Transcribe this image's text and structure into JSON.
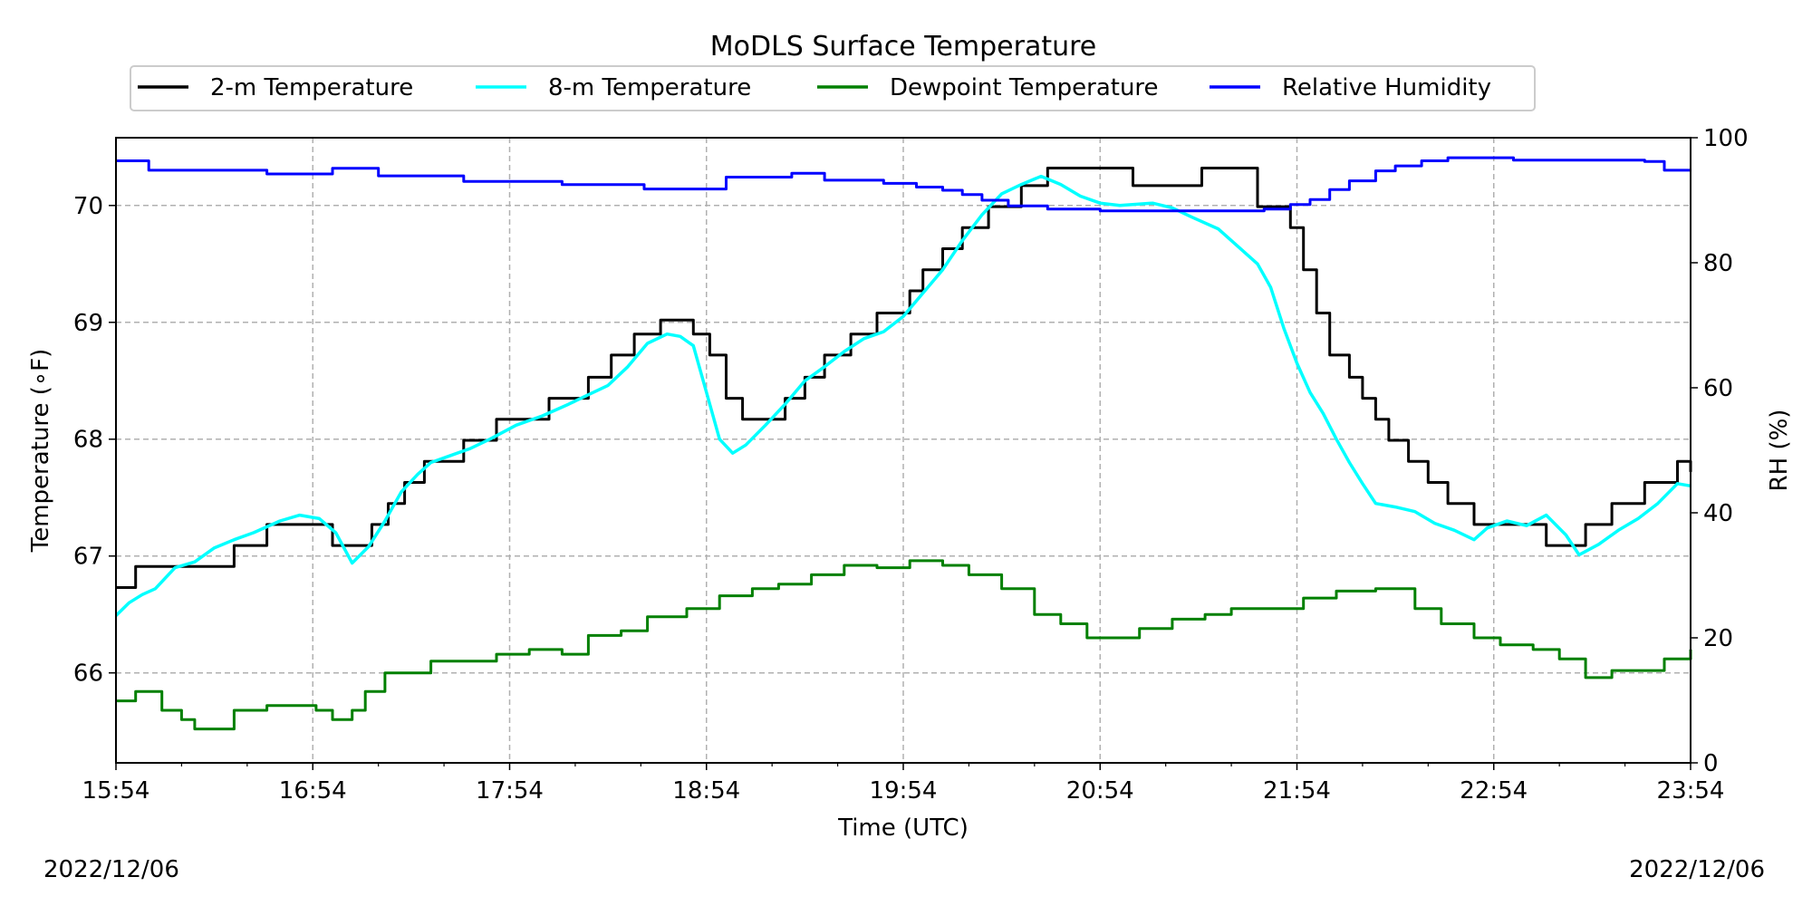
{
  "chart_data": {
    "type": "line",
    "title": "MoDLS Surface Temperature",
    "xlabel": "Time (UTC)",
    "ylabel_left": "Temperature (∘F)",
    "ylabel_right": "RH (%)",
    "x_ticks": [
      "15:54",
      "16:54",
      "17:54",
      "18:54",
      "19:54",
      "20:54",
      "21:54",
      "22:54",
      "23:54"
    ],
    "xlim": [
      "15:54",
      "23:54"
    ],
    "ylim_left": [
      65.23,
      70.58
    ],
    "ylim_right": [
      0,
      100
    ],
    "y_ticks_left": [
      "66",
      "67",
      "68",
      "69",
      "70"
    ],
    "y_ticks_right": [
      "0",
      "20",
      "40",
      "60",
      "80",
      "100"
    ],
    "grid": true,
    "legend_position": "top",
    "date_left": "2022/12/06",
    "date_right": "2022/12/06",
    "series": [
      {
        "name": "2-m Temperature",
        "axis": "left",
        "color": "#000000",
        "points": [
          [
            "15:54",
            66.73
          ],
          [
            "16:00",
            66.91
          ],
          [
            "16:25",
            66.91
          ],
          [
            "16:30",
            67.09
          ],
          [
            "16:40",
            67.27
          ],
          [
            "16:55",
            67.27
          ],
          [
            "17:00",
            67.09
          ],
          [
            "17:07",
            67.09
          ],
          [
            "17:12",
            67.27
          ],
          [
            "17:17",
            67.45
          ],
          [
            "17:22",
            67.63
          ],
          [
            "17:28",
            67.81
          ],
          [
            "17:40",
            67.99
          ],
          [
            "17:50",
            68.17
          ],
          [
            "18:00",
            68.17
          ],
          [
            "18:06",
            68.35
          ],
          [
            "18:18",
            68.53
          ],
          [
            "18:25",
            68.72
          ],
          [
            "18:32",
            68.9
          ],
          [
            "18:40",
            69.02
          ],
          [
            "18:50",
            68.9
          ],
          [
            "18:55",
            68.72
          ],
          [
            "19:00",
            68.35
          ],
          [
            "19:05",
            68.17
          ],
          [
            "19:12",
            68.17
          ],
          [
            "19:18",
            68.35
          ],
          [
            "19:24",
            68.53
          ],
          [
            "19:30",
            68.72
          ],
          [
            "19:38",
            68.9
          ],
          [
            "19:46",
            69.08
          ],
          [
            "19:56",
            69.27
          ],
          [
            "20:00",
            69.45
          ],
          [
            "20:06",
            69.63
          ],
          [
            "20:12",
            69.81
          ],
          [
            "20:20",
            69.99
          ],
          [
            "20:30",
            70.17
          ],
          [
            "20:38",
            70.32
          ],
          [
            "21:00",
            70.32
          ],
          [
            "21:04",
            70.17
          ],
          [
            "21:20",
            70.17
          ],
          [
            "21:25",
            70.32
          ],
          [
            "21:38",
            70.32
          ],
          [
            "21:42",
            69.99
          ],
          [
            "21:48",
            69.99
          ],
          [
            "21:52",
            69.81
          ],
          [
            "21:56",
            69.45
          ],
          [
            "22:00",
            69.08
          ],
          [
            "22:04",
            68.72
          ],
          [
            "22:10",
            68.53
          ],
          [
            "22:14",
            68.35
          ],
          [
            "22:18",
            68.17
          ],
          [
            "22:22",
            67.99
          ],
          [
            "22:28",
            67.81
          ],
          [
            "22:34",
            67.63
          ],
          [
            "22:40",
            67.45
          ],
          [
            "22:48",
            67.27
          ],
          [
            "23:05",
            67.27
          ],
          [
            "23:10",
            67.09
          ],
          [
            "23:22",
            67.27
          ],
          [
            "23:30",
            67.45
          ],
          [
            "23:40",
            67.63
          ],
          [
            "23:50",
            67.81
          ],
          [
            "23:54",
            67.72
          ]
        ]
      },
      {
        "name": "8-m Temperature",
        "axis": "left",
        "color": "#00ffff",
        "points": [
          [
            "15:54",
            66.49
          ],
          [
            "15:58",
            66.6
          ],
          [
            "16:02",
            66.67
          ],
          [
            "16:06",
            66.72
          ],
          [
            "16:12",
            66.9
          ],
          [
            "16:18",
            66.95
          ],
          [
            "16:24",
            67.07
          ],
          [
            "16:30",
            67.14
          ],
          [
            "16:36",
            67.2
          ],
          [
            "16:44",
            67.3
          ],
          [
            "16:50",
            67.35
          ],
          [
            "16:56",
            67.32
          ],
          [
            "17:01",
            67.2
          ],
          [
            "17:06",
            66.94
          ],
          [
            "17:11",
            67.08
          ],
          [
            "17:16",
            67.3
          ],
          [
            "17:21",
            67.55
          ],
          [
            "17:26",
            67.7
          ],
          [
            "17:30",
            67.8
          ],
          [
            "17:36",
            67.86
          ],
          [
            "17:42",
            67.92
          ],
          [
            "17:48",
            68.0
          ],
          [
            "17:56",
            68.12
          ],
          [
            "18:04",
            68.2
          ],
          [
            "18:12",
            68.3
          ],
          [
            "18:18",
            68.38
          ],
          [
            "18:24",
            68.46
          ],
          [
            "18:30",
            68.62
          ],
          [
            "18:36",
            68.82
          ],
          [
            "18:42",
            68.9
          ],
          [
            "18:46",
            68.88
          ],
          [
            "18:50",
            68.8
          ],
          [
            "18:54",
            68.4
          ],
          [
            "18:58",
            68.0
          ],
          [
            "19:02",
            67.88
          ],
          [
            "19:06",
            67.95
          ],
          [
            "19:12",
            68.12
          ],
          [
            "19:18",
            68.3
          ],
          [
            "19:24",
            68.5
          ],
          [
            "19:30",
            68.62
          ],
          [
            "19:36",
            68.75
          ],
          [
            "19:42",
            68.86
          ],
          [
            "19:48",
            68.92
          ],
          [
            "19:54",
            69.05
          ],
          [
            "20:00",
            69.25
          ],
          [
            "20:06",
            69.45
          ],
          [
            "20:12",
            69.7
          ],
          [
            "20:18",
            69.92
          ],
          [
            "20:24",
            70.1
          ],
          [
            "20:30",
            70.18
          ],
          [
            "20:36",
            70.25
          ],
          [
            "20:42",
            70.18
          ],
          [
            "20:48",
            70.08
          ],
          [
            "20:54",
            70.02
          ],
          [
            "21:00",
            70.0
          ],
          [
            "21:10",
            70.02
          ],
          [
            "21:16",
            69.98
          ],
          [
            "21:22",
            69.9
          ],
          [
            "21:30",
            69.8
          ],
          [
            "21:36",
            69.65
          ],
          [
            "21:42",
            69.5
          ],
          [
            "21:46",
            69.3
          ],
          [
            "21:50",
            68.95
          ],
          [
            "21:54",
            68.65
          ],
          [
            "21:58",
            68.4
          ],
          [
            "22:02",
            68.22
          ],
          [
            "22:06",
            68.0
          ],
          [
            "22:10",
            67.8
          ],
          [
            "22:14",
            67.62
          ],
          [
            "22:18",
            67.45
          ],
          [
            "22:24",
            67.42
          ],
          [
            "22:30",
            67.38
          ],
          [
            "22:36",
            67.28
          ],
          [
            "22:42",
            67.22
          ],
          [
            "22:48",
            67.14
          ],
          [
            "22:52",
            67.24
          ],
          [
            "22:58",
            67.3
          ],
          [
            "23:04",
            67.26
          ],
          [
            "23:10",
            67.35
          ],
          [
            "23:16",
            67.18
          ],
          [
            "23:20",
            67.01
          ],
          [
            "23:26",
            67.1
          ],
          [
            "23:32",
            67.22
          ],
          [
            "23:38",
            67.32
          ],
          [
            "23:44",
            67.45
          ],
          [
            "23:50",
            67.62
          ],
          [
            "23:54",
            67.6
          ]
        ]
      },
      {
        "name": "Dewpoint Temperature",
        "axis": "left",
        "color": "#008000",
        "points": [
          [
            "15:54",
            65.76
          ],
          [
            "16:00",
            65.84
          ],
          [
            "16:08",
            65.68
          ],
          [
            "16:14",
            65.6
          ],
          [
            "16:18",
            65.52
          ],
          [
            "16:30",
            65.68
          ],
          [
            "16:40",
            65.72
          ],
          [
            "16:55",
            65.68
          ],
          [
            "17:00",
            65.6
          ],
          [
            "17:06",
            65.68
          ],
          [
            "17:10",
            65.84
          ],
          [
            "17:16",
            66.0
          ],
          [
            "17:30",
            66.1
          ],
          [
            "17:50",
            66.16
          ],
          [
            "18:00",
            66.2
          ],
          [
            "18:10",
            66.16
          ],
          [
            "18:18",
            66.32
          ],
          [
            "18:28",
            66.36
          ],
          [
            "18:36",
            66.48
          ],
          [
            "18:48",
            66.55
          ],
          [
            "18:58",
            66.66
          ],
          [
            "19:08",
            66.72
          ],
          [
            "19:16",
            66.76
          ],
          [
            "19:26",
            66.84
          ],
          [
            "19:36",
            66.92
          ],
          [
            "19:46",
            66.9
          ],
          [
            "19:56",
            66.96
          ],
          [
            "20:06",
            66.92
          ],
          [
            "20:14",
            66.84
          ],
          [
            "20:24",
            66.72
          ],
          [
            "20:34",
            66.5
          ],
          [
            "20:42",
            66.42
          ],
          [
            "20:50",
            66.3
          ],
          [
            "20:58",
            66.3
          ],
          [
            "21:06",
            66.38
          ],
          [
            "21:16",
            66.46
          ],
          [
            "21:26",
            66.5
          ],
          [
            "21:34",
            66.55
          ],
          [
            "21:44",
            66.55
          ],
          [
            "21:50",
            66.55
          ],
          [
            "21:56",
            66.64
          ],
          [
            "22:06",
            66.7
          ],
          [
            "22:18",
            66.72
          ],
          [
            "22:30",
            66.55
          ],
          [
            "22:38",
            66.42
          ],
          [
            "22:48",
            66.3
          ],
          [
            "22:56",
            66.24
          ],
          [
            "23:06",
            66.2
          ],
          [
            "23:14",
            66.12
          ],
          [
            "23:22",
            65.96
          ],
          [
            "23:30",
            66.02
          ],
          [
            "23:38",
            66.02
          ],
          [
            "23:46",
            66.12
          ],
          [
            "23:54",
            66.2
          ]
        ]
      },
      {
        "name": "Relative Humidity",
        "axis": "right",
        "color": "#0000ff",
        "points": [
          [
            "15:54",
            96.3
          ],
          [
            "16:03",
            96.3
          ],
          [
            "16:04",
            94.8
          ],
          [
            "16:38",
            94.8
          ],
          [
            "16:40",
            94.2
          ],
          [
            "16:44",
            94.2
          ],
          [
            "17:00",
            95.1
          ],
          [
            "17:12",
            95.1
          ],
          [
            "17:14",
            93.9
          ],
          [
            "17:36",
            93.9
          ],
          [
            "17:40",
            93.0
          ],
          [
            "18:05",
            93.0
          ],
          [
            "18:10",
            92.5
          ],
          [
            "18:32",
            92.5
          ],
          [
            "18:35",
            91.8
          ],
          [
            "18:52",
            91.8
          ],
          [
            "19:00",
            93.7
          ],
          [
            "19:20",
            94.3
          ],
          [
            "19:30",
            93.2
          ],
          [
            "19:48",
            92.7
          ],
          [
            "19:58",
            92.1
          ],
          [
            "20:06",
            91.6
          ],
          [
            "20:12",
            90.9
          ],
          [
            "20:18",
            90.0
          ],
          [
            "20:26",
            89.1
          ],
          [
            "20:38",
            88.6
          ],
          [
            "20:54",
            88.3
          ],
          [
            "21:10",
            88.3
          ],
          [
            "21:25",
            88.3
          ],
          [
            "21:44",
            88.6
          ],
          [
            "21:52",
            89.3
          ],
          [
            "21:58",
            90.1
          ],
          [
            "22:04",
            91.7
          ],
          [
            "22:10",
            93.1
          ],
          [
            "22:18",
            94.7
          ],
          [
            "22:24",
            95.5
          ],
          [
            "22:32",
            96.3
          ],
          [
            "22:40",
            96.8
          ],
          [
            "23:00",
            96.4
          ],
          [
            "23:40",
            96.2
          ],
          [
            "23:46",
            94.8
          ],
          [
            "23:54",
            94.8
          ]
        ]
      }
    ]
  }
}
